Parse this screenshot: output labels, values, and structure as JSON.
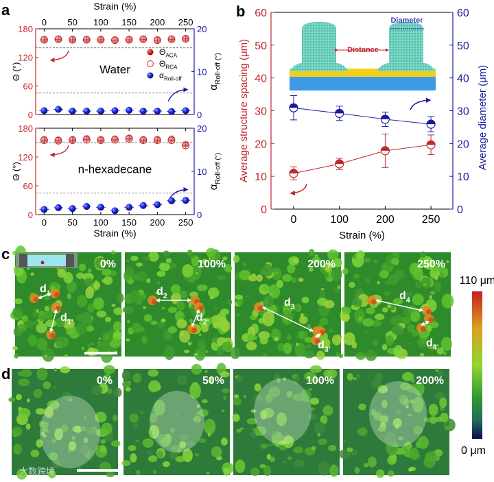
{
  "panel_labels": {
    "a": "a",
    "b": "b",
    "c": "c",
    "d": "d"
  },
  "chart_data": [
    {
      "id": "a-water",
      "type": "scatter",
      "annotation": "Water",
      "x_top_label": "Strain (%)",
      "ylabel_left": "Θ (°)",
      "ylabel_right": "αRoll-off (°)",
      "xticks": [
        0,
        50,
        100,
        150,
        200,
        250
      ],
      "yticks_left": [
        0,
        60,
        120,
        180
      ],
      "yticks_right": [
        0,
        10,
        20
      ],
      "xlim": [
        -15,
        265
      ],
      "ylim_left": [
        0,
        180
      ],
      "ylim_right": [
        0,
        20
      ],
      "x": [
        0,
        25,
        50,
        75,
        100,
        125,
        150,
        175,
        200,
        225,
        250
      ],
      "series": [
        {
          "name": "ΘACA",
          "axis": "left",
          "values": [
            158,
            159,
            158,
            158,
            158,
            157,
            158,
            159,
            157,
            159,
            160
          ]
        },
        {
          "name": "ΘRCA",
          "axis": "left",
          "values": [
            157,
            158,
            157,
            157,
            157,
            156,
            157,
            158,
            156,
            158,
            159
          ]
        },
        {
          "name": "αRoll-off",
          "axis": "right",
          "values": [
            0.9,
            1.2,
            0.8,
            0.8,
            0.8,
            0.9,
            1.0,
            0.8,
            0.8,
            0.7,
            0.9
          ]
        }
      ],
      "reference_lines": {
        "left": 140,
        "right": 5
      },
      "legend": [
        {
          "label": "Θ",
          "sub": "ACA",
          "style": "filled-red"
        },
        {
          "label": "Θ",
          "sub": "RCA",
          "style": "open-red"
        },
        {
          "label": "α",
          "sub": "Roll-off",
          "style": "filled-blue"
        }
      ],
      "colors": {
        "left": "#c0262b",
        "right": "#1a1aa0"
      }
    },
    {
      "id": "a-hexadecane",
      "type": "scatter",
      "annotation": "n-hexadecane",
      "xlabel": "Strain (%)",
      "ylabel_left": "Θ (°)",
      "ylabel_right": "αRoll-off (°)",
      "xticks": [
        0,
        50,
        100,
        150,
        200,
        250
      ],
      "yticks_left": [
        0,
        60,
        120,
        180
      ],
      "yticks_right": [
        0,
        10,
        20
      ],
      "xlim": [
        -15,
        265
      ],
      "ylim_left": [
        0,
        180
      ],
      "ylim_right": [
        0,
        20
      ],
      "x": [
        0,
        25,
        50,
        75,
        100,
        125,
        150,
        175,
        200,
        225,
        250
      ],
      "series": [
        {
          "name": "ΘACA",
          "axis": "left",
          "values": [
            157,
            156,
            157,
            159,
            157,
            158,
            160,
            157,
            157,
            158,
            147
          ]
        },
        {
          "name": "ΘRCA",
          "axis": "left",
          "values": [
            155,
            154,
            155,
            156,
            155,
            156,
            158,
            155,
            155,
            155,
            144
          ]
        },
        {
          "name": "αRoll-off",
          "axis": "right",
          "values": [
            1.2,
            1.6,
            1.4,
            1.9,
            1.7,
            0.9,
            1.7,
            2.1,
            2.3,
            3.2,
            3.3
          ]
        }
      ],
      "reference_lines": {
        "left": 150,
        "right": 5
      },
      "colors": {
        "left": "#c0262b",
        "right": "#1a1aa0"
      }
    },
    {
      "id": "b",
      "type": "line",
      "xlabel": "Strain (%)",
      "ylabel_left": "Average structure spacing  (μm)",
      "ylabel_right": "Average diameter (μm)",
      "categories": [
        "0",
        "100",
        "200",
        "250"
      ],
      "yticks_left": [
        0,
        10,
        20,
        30,
        40,
        50,
        60
      ],
      "yticks_right": [
        0,
        10,
        20,
        30,
        40,
        50,
        60
      ],
      "ylim_left": [
        0,
        60
      ],
      "ylim_right": [
        0,
        60
      ],
      "series": [
        {
          "name": "Average structure spacing",
          "axis": "left",
          "values": [
            10.9,
            13.8,
            17.8,
            19.6
          ],
          "errors": [
            2.0,
            1.7,
            5.1,
            3.0
          ],
          "color": "#c0262b"
        },
        {
          "name": "Average diameter",
          "axis": "right",
          "values": [
            30.9,
            29.2,
            27.4,
            25.9
          ],
          "errors": [
            3.7,
            2.2,
            2.2,
            2.3
          ],
          "color": "#1a1aa0"
        }
      ],
      "inset_labels": {
        "distance": "Distance",
        "diameter": "Diameter"
      }
    }
  ],
  "panel_c": {
    "images": [
      {
        "strain": "0%",
        "labels": [
          "d1",
          "d1'"
        ]
      },
      {
        "strain": "100%",
        "labels": [
          "d2",
          "d2'"
        ]
      },
      {
        "strain": "200%",
        "labels": [
          "d3",
          "d3'"
        ]
      },
      {
        "strain": "250%",
        "labels": [
          "d4",
          "d4'"
        ]
      }
    ]
  },
  "panel_d": {
    "images": [
      {
        "strain": "0%"
      },
      {
        "strain": "50%"
      },
      {
        "strain": "100%"
      },
      {
        "strain": "200%"
      }
    ]
  },
  "colorbar": {
    "max_label": "110 μm",
    "min_label": "0 μm",
    "colors": [
      "#c81e1e",
      "#d9a020",
      "#8fd630",
      "#2f9a30",
      "#1f6a5a",
      "#0a0a50"
    ]
  },
  "watermark": "大数跨境"
}
